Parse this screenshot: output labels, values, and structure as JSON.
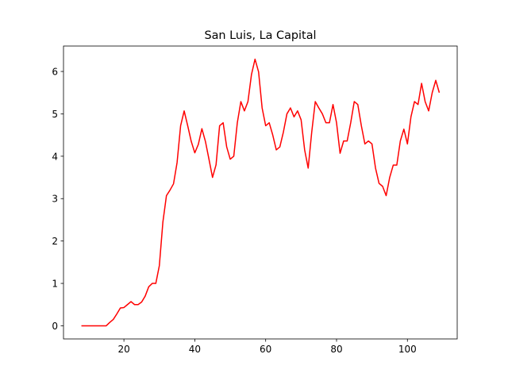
{
  "chart_data": {
    "type": "line",
    "title": "San Luis, La Capital",
    "color": "#ff0000",
    "x": [
      8,
      9,
      10,
      11,
      12,
      13,
      14,
      15,
      16,
      17,
      18,
      19,
      20,
      21,
      22,
      23,
      24,
      25,
      26,
      27,
      28,
      29,
      30,
      31,
      32,
      33,
      34,
      35,
      36,
      37,
      38,
      39,
      40,
      41,
      42,
      43,
      44,
      45,
      46,
      47,
      48,
      49,
      50,
      51,
      52,
      53,
      54,
      55,
      56,
      57,
      58,
      59,
      60,
      61,
      62,
      63,
      64,
      65,
      66,
      67,
      68,
      69,
      70,
      71,
      72,
      73,
      74,
      75,
      76,
      77,
      78,
      79,
      80,
      81,
      82,
      83,
      84,
      85,
      86,
      87,
      88,
      89,
      90,
      91,
      92,
      93,
      94,
      95,
      96,
      97,
      98,
      99,
      100,
      101,
      102,
      103,
      104,
      105,
      106,
      107,
      108,
      109
    ],
    "values": [
      0,
      0,
      0,
      0,
      0,
      0,
      0,
      0,
      0.08,
      0.15,
      0.28,
      0.42,
      0.43,
      0.5,
      0.57,
      0.5,
      0.5,
      0.56,
      0.7,
      0.92,
      1.0,
      1.0,
      1.42,
      2.45,
      3.07,
      3.2,
      3.35,
      3.85,
      4.72,
      5.07,
      4.72,
      4.35,
      4.08,
      4.28,
      4.65,
      4.35,
      3.93,
      3.5,
      3.8,
      4.72,
      4.79,
      4.22,
      3.93,
      4.0,
      4.79,
      5.29,
      5.07,
      5.29,
      5.93,
      6.29,
      5.99,
      5.14,
      4.72,
      4.79,
      4.5,
      4.15,
      4.22,
      4.57,
      5.0,
      5.14,
      4.93,
      5.07,
      4.86,
      4.15,
      3.72,
      4.57,
      5.29,
      5.14,
      5.0,
      4.79,
      4.79,
      5.22,
      4.79,
      4.07,
      4.36,
      4.36,
      4.79,
      5.29,
      5.22,
      4.72,
      4.29,
      4.36,
      4.29,
      3.72,
      3.36,
      3.29,
      3.07,
      3.5,
      3.79,
      3.79,
      4.36,
      4.64,
      4.29,
      4.93,
      5.29,
      5.22,
      5.72,
      5.29,
      5.07,
      5.5,
      5.79,
      5.5
    ],
    "xlim": [
      2.95,
      114.05
    ],
    "ylim": [
      -0.31,
      6.6
    ],
    "xticks": [
      20,
      40,
      60,
      80,
      100
    ],
    "yticks": [
      0,
      1,
      2,
      3,
      4,
      5,
      6
    ]
  }
}
